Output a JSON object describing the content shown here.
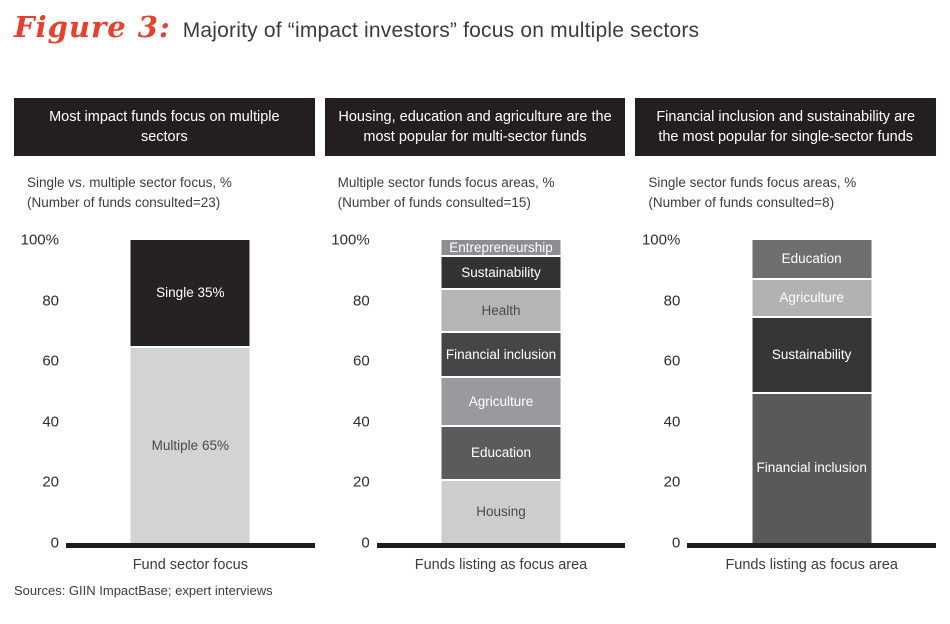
{
  "title": {
    "figure_label": "Figure 3:",
    "text": "Majority of “impact investors” focus on multiple sectors"
  },
  "footer": {
    "sources": "Sources: GIIN ImpactBase; expert interviews"
  },
  "colors": {
    "accent_red": "#e8402d",
    "header_bg": "#231f20",
    "baseline": "#1d1d1d",
    "separator": "#ffffff",
    "text_dark": "#3c3c3c",
    "text_light": "#ffffff"
  },
  "chart_data": [
    {
      "type": "bar",
      "stacked": true,
      "panel_header": "Most impact funds focus on multiple sectors",
      "subtitle_line1": "Single vs. multiple sector focus, %",
      "subtitle_line2": "(Number of funds consulted=23)",
      "xlabel": "Fund sector focus",
      "ylim": [
        0,
        100
      ],
      "yticks": [
        "100%",
        "80",
        "60",
        "40",
        "20",
        "0"
      ],
      "segments_bottom_to_top": [
        {
          "name": "multiple",
          "label": "Multiple 65%",
          "value": 65,
          "color": "#d2d3d4",
          "text_color": "#4a4a4a"
        },
        {
          "name": "single",
          "label": "Single 35%",
          "value": 35,
          "color": "#262223",
          "text_color": "#ffffff"
        }
      ]
    },
    {
      "type": "bar",
      "stacked": true,
      "panel_header": "Housing, education and agriculture are the most popular for multi-sector funds",
      "subtitle_line1": "Multiple sector funds focus areas, %",
      "subtitle_line2": "(Number of funds consulted=15)",
      "xlabel": "Funds listing as focus area",
      "ylim": [
        0,
        100
      ],
      "yticks": [
        "100%",
        "80",
        "60",
        "40",
        "20",
        "0"
      ],
      "segments_bottom_to_top": [
        {
          "name": "housing",
          "label": "Housing",
          "value": 21,
          "color": "#cbcdce",
          "text_color": "#4a4a4a"
        },
        {
          "name": "education",
          "label": "Education",
          "value": 18,
          "color": "#595b5d",
          "text_color": "#ffffff"
        },
        {
          "name": "agriculture",
          "label": "Agriculture",
          "value": 16,
          "color": "#989a9d",
          "text_color": "#ffffff"
        },
        {
          "name": "financial-inclusion",
          "label": "Financial inclusion",
          "value": 15,
          "color": "#454648",
          "text_color": "#ffffff"
        },
        {
          "name": "health",
          "label": "Health",
          "value": 14,
          "color": "#b3b5b7",
          "text_color": "#4a4a4a"
        },
        {
          "name": "sustainability",
          "label": "Sustainability",
          "value": 11,
          "color": "#323334",
          "text_color": "#ffffff"
        },
        {
          "name": "entrepreneurship",
          "label": "Entrepreneurship",
          "value": 5,
          "color": "#8c8e91",
          "text_color": "#ffffff"
        }
      ]
    },
    {
      "type": "bar",
      "stacked": true,
      "panel_header": "Financial inclusion and sustainability are the most popular for single-sector funds",
      "subtitle_line1": "Single sector funds focus areas, %",
      "subtitle_line2": "(Number of funds consulted=8)",
      "xlabel": "Funds listing as focus area",
      "ylim": [
        0,
        100
      ],
      "yticks": [
        "100%",
        "80",
        "60",
        "40",
        "20",
        "0"
      ],
      "segments_bottom_to_top": [
        {
          "name": "financial-inclusion",
          "label": "Financial inclusion",
          "value": 50,
          "color": "#58595b",
          "text_color": "#ffffff"
        },
        {
          "name": "sustainability",
          "label": "Sustainability",
          "value": 25,
          "color": "#353637",
          "text_color": "#ffffff"
        },
        {
          "name": "agriculture",
          "label": "Agriculture",
          "value": 12.5,
          "color": "#b0b2b4",
          "text_color": "#ffffff"
        },
        {
          "name": "education",
          "label": "Education",
          "value": 12.5,
          "color": "#6d6f71",
          "text_color": "#ffffff"
        }
      ]
    }
  ]
}
